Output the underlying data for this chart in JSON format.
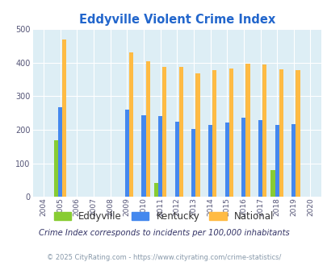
{
  "title": "Eddyville Violent Crime Index",
  "years": [
    2004,
    2005,
    2006,
    2007,
    2008,
    2009,
    2010,
    2011,
    2012,
    2013,
    2014,
    2015,
    2016,
    2017,
    2018,
    2019,
    2020
  ],
  "eddyville": [
    null,
    170,
    null,
    null,
    null,
    null,
    null,
    42,
    null,
    null,
    null,
    null,
    null,
    null,
    80,
    null,
    null
  ],
  "kentucky": [
    null,
    267,
    null,
    null,
    null,
    260,
    244,
    240,
    225,
    202,
    215,
    221,
    235,
    228,
    214,
    217,
    null
  ],
  "national": [
    null,
    469,
    null,
    null,
    null,
    431,
    405,
    387,
    387,
    368,
    378,
    383,
    397,
    394,
    381,
    379,
    null
  ],
  "eddyville_color": "#88cc33",
  "kentucky_color": "#4488ee",
  "national_color": "#ffbb44",
  "plot_bg": "#ddeef5",
  "ylim": [
    0,
    500
  ],
  "yticks": [
    0,
    100,
    200,
    300,
    400,
    500
  ],
  "bar_width": 0.25,
  "subtitle": "Crime Index corresponds to incidents per 100,000 inhabitants",
  "footer": "© 2025 CityRating.com - https://www.cityrating.com/crime-statistics/",
  "legend_labels": [
    "Eddyville",
    "Kentucky",
    "National"
  ],
  "title_color": "#2266cc",
  "subtitle_color": "#333366",
  "footer_color": "#8899aa"
}
